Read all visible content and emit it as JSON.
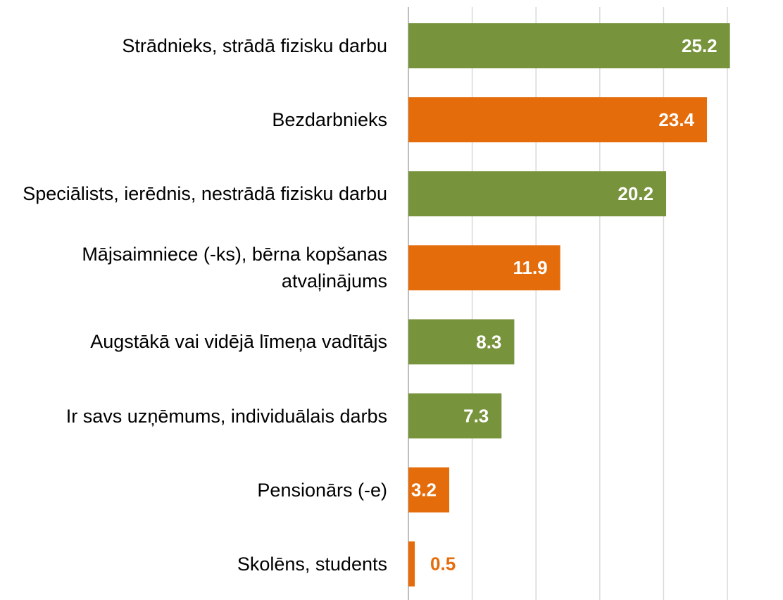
{
  "chart_data": {
    "type": "barh",
    "categories": [
      "Strādnieks, strādā fizisku darbu",
      "Bezdarbnieks",
      "Speciālists, ierēdnis, nestrādā fizisku darbu",
      "Mājsaimniece (-ks), bērna kopšanas atvaļinājums",
      "Augstākā vai vidējā līmeņa vadītājs",
      "Ir savs uzņēmums, individuālais darbs",
      "Pensionārs (-e)",
      "Skolēns, students"
    ],
    "values": [
      25.2,
      23.4,
      20.2,
      11.9,
      8.3,
      7.3,
      3.2,
      0.5
    ],
    "colors": [
      "#77933c",
      "#e46c0a",
      "#77933c",
      "#e46c0a",
      "#77933c",
      "#77933c",
      "#e46c0a",
      "#e46c0a"
    ],
    "xlim": [
      0,
      29
    ],
    "xticks": [
      0,
      5,
      10,
      15,
      20,
      25
    ],
    "grid": true
  }
}
